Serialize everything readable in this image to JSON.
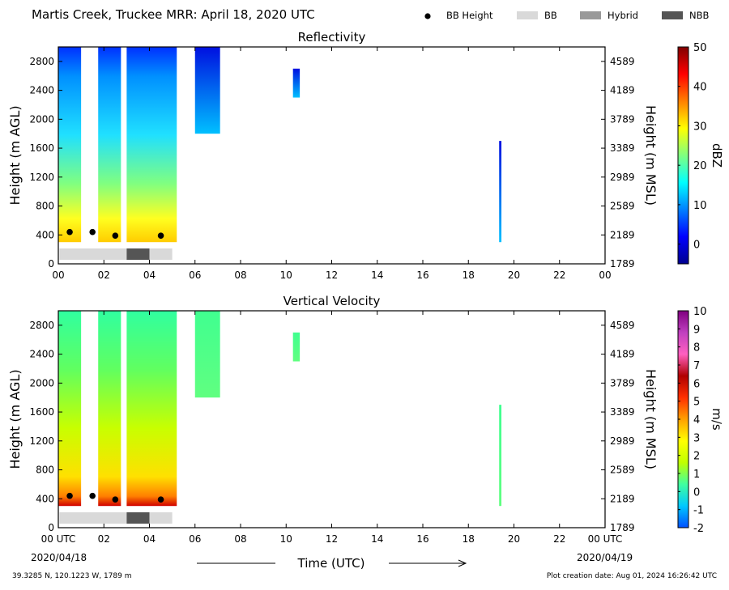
{
  "header": {
    "title": "Martis Creek, Truckee MRR:  April 18, 2020 UTC",
    "legend": [
      {
        "label": "BB Height",
        "kind": "dot",
        "color": "#000000"
      },
      {
        "label": "BB",
        "kind": "box",
        "color": "#d9d9d9"
      },
      {
        "label": "Hybrid",
        "kind": "box",
        "color": "#999999"
      },
      {
        "label": "NBB",
        "kind": "box",
        "color": "#555555"
      }
    ]
  },
  "footer": {
    "location": "39.3285 N, 120.1223 W, 1789 m",
    "creation": "Plot creation date: Aug 01, 2024 16:26:42 UTC",
    "xlabel": "Time (UTC)",
    "start_date": "2020/04/18",
    "end_date": "2020/04/19"
  },
  "chart_data": [
    {
      "type": "heatmap",
      "title": "Reflectivity",
      "ylabel": "Height (m AGL)",
      "ylabel_right": "Height (m MSL)",
      "x_ticks": [
        "00",
        "02",
        "04",
        "06",
        "08",
        "10",
        "12",
        "14",
        "16",
        "18",
        "20",
        "22",
        "00"
      ],
      "xlim": [
        0,
        24
      ],
      "ylim": [
        0,
        3000
      ],
      "y_ticks": [
        0,
        400,
        800,
        1200,
        1600,
        2000,
        2400,
        2800
      ],
      "y_ticks_right": [
        "1789",
        "2189",
        "2589",
        "2989",
        "3389",
        "3789",
        "4189",
        "4589"
      ],
      "colorbar": {
        "label": "dBZ",
        "range": [
          -5,
          50
        ],
        "ticks": [
          "0",
          "10",
          "20",
          "30",
          "40",
          "50"
        ],
        "colors": [
          "#00008f",
          "#0000ff",
          "#0080ff",
          "#00ffff",
          "#80ff80",
          "#ffff00",
          "#ff8000",
          "#ff0000",
          "#800000"
        ]
      },
      "bb_height": [
        {
          "x": 0.5,
          "y": 440
        },
        {
          "x": 1.5,
          "y": 440
        },
        {
          "x": 2.5,
          "y": 390
        },
        {
          "x": 4.5,
          "y": 390
        }
      ],
      "bb_type": [
        {
          "x0": 0.05,
          "x1": 3.0,
          "type": "BB"
        },
        {
          "x0": 3.0,
          "x1": 4.0,
          "type": "NBB"
        },
        {
          "x0": 4.0,
          "x1": 5.0,
          "type": "BB"
        }
      ],
      "echo_regions": [
        {
          "x0": 0.0,
          "x1": 1.0,
          "y0": 300,
          "y1": 3000,
          "level": "mixed"
        },
        {
          "x0": 1.75,
          "x1": 2.75,
          "y0": 300,
          "y1": 3000,
          "level": "mixed"
        },
        {
          "x0": 3.0,
          "x1": 5.2,
          "y0": 300,
          "y1": 3000,
          "level": "mixed"
        },
        {
          "x0": 6.0,
          "x1": 7.1,
          "y0": 1800,
          "y1": 3000,
          "level": "low"
        },
        {
          "x0": 10.3,
          "x1": 10.6,
          "y0": 2300,
          "y1": 2700,
          "level": "low"
        },
        {
          "x0": 19.35,
          "x1": 19.45,
          "y0": 300,
          "y1": 1700,
          "level": "low"
        }
      ]
    },
    {
      "type": "heatmap",
      "title": "Vertical Velocity",
      "ylabel": "Height (m AGL)",
      "ylabel_right": "Height (m MSL)",
      "x_ticks": [
        "00 UTC",
        "02",
        "04",
        "06",
        "08",
        "10",
        "12",
        "14",
        "16",
        "18",
        "20",
        "22",
        "00 UTC"
      ],
      "xlim": [
        0,
        24
      ],
      "ylim": [
        0,
        3000
      ],
      "y_ticks": [
        0,
        400,
        800,
        1200,
        1600,
        2000,
        2400,
        2800
      ],
      "y_ticks_right": [
        "1789",
        "2189",
        "2589",
        "2989",
        "3389",
        "3789",
        "4189",
        "4589"
      ],
      "colorbar": {
        "label": "m/s",
        "range": [
          -2,
          10
        ],
        "ticks": [
          "-2",
          "-1",
          "0",
          "1",
          "2",
          "3",
          "4",
          "5",
          "6",
          "7",
          "8",
          "9",
          "10"
        ],
        "colors": [
          "#0050ff",
          "#00c8ff",
          "#40ffa0",
          "#c0ff00",
          "#ffff00",
          "#ffa000",
          "#ff3000",
          "#b00000",
          "#ff60c0",
          "#c040c0",
          "#800080"
        ]
      },
      "bb_height": [
        {
          "x": 0.5,
          "y": 440
        },
        {
          "x": 1.5,
          "y": 440
        },
        {
          "x": 2.5,
          "y": 390
        },
        {
          "x": 4.5,
          "y": 390
        }
      ],
      "bb_type": [
        {
          "x0": 0.05,
          "x1": 3.0,
          "type": "BB"
        },
        {
          "x0": 3.0,
          "x1": 4.0,
          "type": "NBB"
        },
        {
          "x0": 4.0,
          "x1": 5.0,
          "type": "BB"
        }
      ],
      "echo_regions": [
        {
          "x0": 0.0,
          "x1": 1.0,
          "y0": 300,
          "y1": 3000,
          "level": "mixed"
        },
        {
          "x0": 1.75,
          "x1": 2.75,
          "y0": 300,
          "y1": 3000,
          "level": "mixed"
        },
        {
          "x0": 3.0,
          "x1": 5.2,
          "y0": 300,
          "y1": 3000,
          "level": "mixed"
        },
        {
          "x0": 6.0,
          "x1": 7.1,
          "y0": 1800,
          "y1": 3000,
          "level": "low"
        },
        {
          "x0": 10.3,
          "x1": 10.6,
          "y0": 2300,
          "y1": 2700,
          "level": "low"
        },
        {
          "x0": 19.35,
          "x1": 19.45,
          "y0": 300,
          "y1": 1700,
          "level": "low"
        }
      ]
    }
  ]
}
